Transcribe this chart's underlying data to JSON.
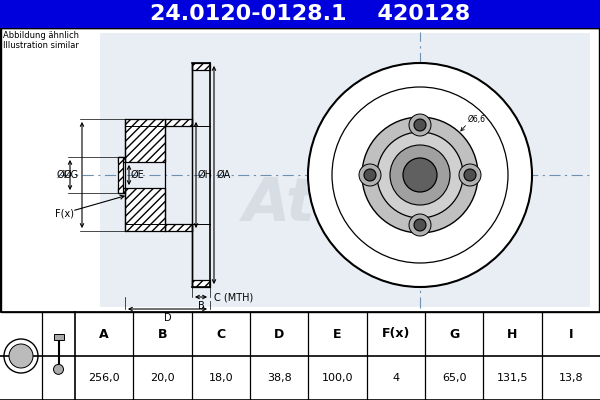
{
  "title_part_number": "24.0120-0128.1",
  "title_ref_number": "420128",
  "title_bg_color": "#0000DD",
  "title_text_color": "#FFFFFF",
  "subtitle_line1": "Abbildung ähnlich",
  "subtitle_line2": "Illustration similar",
  "table_headers": [
    "A",
    "B",
    "C",
    "D",
    "E",
    "F(x)",
    "G",
    "H",
    "I"
  ],
  "table_values": [
    "256,0",
    "20,0",
    "18,0",
    "38,8",
    "100,0",
    "4",
    "65,0",
    "131,5",
    "13,8"
  ],
  "phi6_6_label": "Ø6,6",
  "bg_color": "#FFFFFF",
  "draw_area_bg": "#FFFFFF",
  "draw_area_inner_bg": "#E0E8F0",
  "title_fontsize": 16,
  "label_fontsize": 7,
  "table_header_fontsize": 9,
  "table_val_fontsize": 8,
  "watermark_color": "#C8CDD8",
  "center_line_color": "#7090B0",
  "hatch_pattern": "////",
  "border_color": "#000000",
  "table_bg": "#FFFFFF",
  "draw_border_color": "#000000"
}
